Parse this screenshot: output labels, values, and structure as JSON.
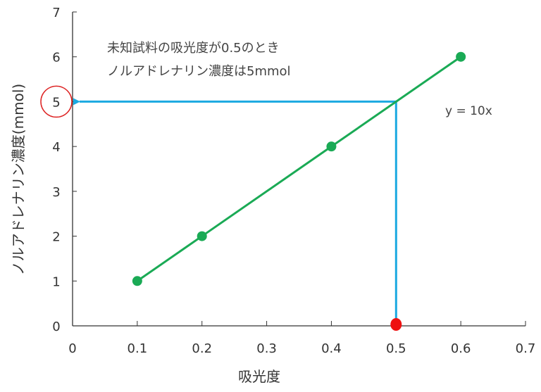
{
  "chart_data": {
    "type": "line",
    "xlabel": "吸光度",
    "ylabel": "ノルアドレナリン濃度(mmol)",
    "xlim": [
      0,
      0.7
    ],
    "ylim": [
      0,
      7
    ],
    "xticks": [
      "0",
      "0.1",
      "0.2",
      "0.3",
      "0.4",
      "0.5",
      "0.6",
      "0.7"
    ],
    "yticks": [
      "0",
      "1",
      "2",
      "3",
      "4",
      "5",
      "6",
      "7"
    ],
    "grid": false,
    "series": [
      {
        "x": [
          0.1,
          0.2,
          0.4,
          0.6
        ],
        "y": [
          1,
          2,
          4,
          6
        ],
        "color": "#1aaa55"
      }
    ],
    "unknown_point": {
      "x": 0.5,
      "y": 0,
      "color": "#ee1111"
    },
    "readout_lines": {
      "x": 0.5,
      "y": 5,
      "color": "#1ba9e1"
    },
    "highlighted_ytick": "5",
    "highlight_color": "#dd2222",
    "equation": "y = 10x",
    "annotation": [
      "未知試料の吸光度が0.5のとき",
      "ノルアドレナリン濃度は5mmol"
    ]
  }
}
